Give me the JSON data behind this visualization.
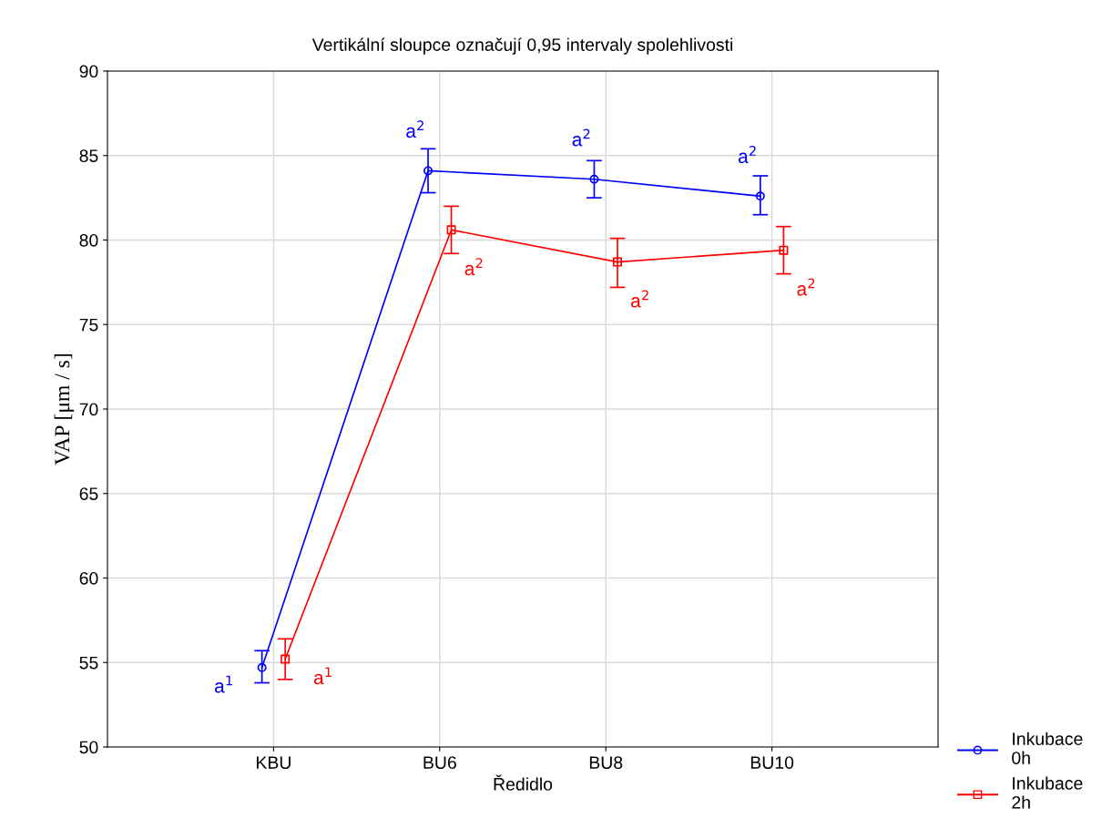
{
  "chart_data": {
    "type": "line",
    "title": "Vertikální sloupce označují 0,95 intervaly spolehlivosti",
    "xlabel": "Ředidlo",
    "ylabel": "VAP [μm / s]",
    "categories": [
      "KBU",
      "BU6",
      "BU8",
      "BU10"
    ],
    "series": [
      {
        "name": "Inkubace\n0h",
        "color": "#0000ff",
        "marker": "circle",
        "values": [
          54.7,
          84.1,
          83.6,
          82.6
        ],
        "errors": [
          [
            53.8,
            55.7
          ],
          [
            82.8,
            85.4
          ],
          [
            82.5,
            84.7
          ],
          [
            81.5,
            83.8
          ]
        ]
      },
      {
        "name": "Inkubace\n2h",
        "color": "#ff0000",
        "marker": "square",
        "values": [
          55.2,
          80.6,
          78.7,
          79.4
        ],
        "errors": [
          [
            54.0,
            56.4
          ],
          [
            79.2,
            82.0
          ],
          [
            77.2,
            80.1
          ],
          [
            78.0,
            80.8
          ]
        ]
      }
    ],
    "annotations": [
      "a$^{1}$",
      "a$^{2}$",
      "a$^{2}$",
      "a$^{2}$",
      "a$^{1}$",
      "a$^{2}$",
      "a$^{2}$",
      "a$^{2}$"
    ],
    "ylim": [
      50,
      90
    ],
    "yticks": [
      50,
      55,
      60,
      65,
      70,
      75,
      80,
      85,
      90
    ],
    "grid": true,
    "legend": "bottom right",
    "line_style": "solid"
  }
}
